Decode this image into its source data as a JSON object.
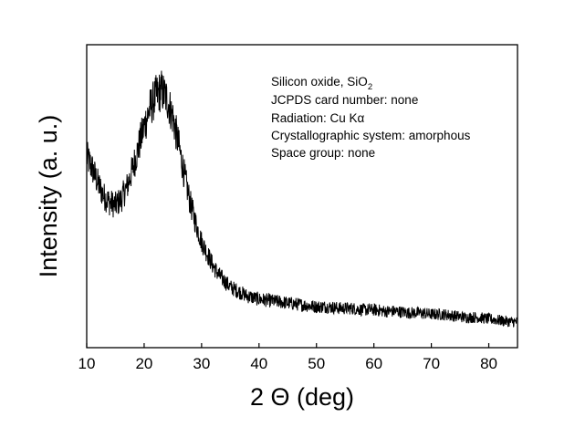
{
  "chart_data": {
    "type": "line",
    "xlabel": "2 Θ (deg)",
    "ylabel": "Intensity (a. u.)",
    "xlim": [
      10,
      85
    ],
    "ylim": [
      0,
      100
    ],
    "x_ticks": [
      10,
      20,
      30,
      40,
      50,
      60,
      70,
      80
    ],
    "y_ticks_labeled": false,
    "grid": false,
    "annotations": [
      {
        "text": "Silicon oxide, SiO",
        "subscript": "2"
      },
      {
        "text": "JCPDS card number: none"
      },
      {
        "text": "Radiation: Cu Kα"
      },
      {
        "text": "Crystallographic system: amorphous"
      },
      {
        "text": "Space group: none"
      }
    ],
    "series": [
      {
        "x": [
          10,
          11,
          12,
          13,
          14,
          15,
          16,
          17,
          18,
          19,
          20,
          21,
          22,
          23,
          24,
          25,
          26,
          27,
          28,
          29,
          30,
          31,
          32,
          33,
          34,
          35,
          36,
          37,
          38,
          39,
          40,
          42,
          44,
          46,
          48,
          50,
          52,
          54,
          56,
          58,
          60,
          62,
          64,
          66,
          68,
          70,
          72,
          74,
          76,
          78,
          80,
          82,
          84,
          85
        ],
        "y": [
          63,
          59,
          54,
          50,
          48,
          47,
          49,
          53,
          59,
          66,
          73,
          79,
          83,
          85,
          82,
          76,
          67,
          57,
          48,
          41,
          35,
          31,
          27,
          24,
          22,
          20,
          19,
          18,
          17,
          16.5,
          16,
          15.5,
          15,
          14.5,
          14,
          13.5,
          13.5,
          13,
          13,
          12.5,
          12.5,
          12,
          12,
          11.5,
          11.5,
          11,
          11,
          10.5,
          10,
          10,
          9.5,
          9,
          8.5,
          8.5
        ]
      }
    ]
  }
}
